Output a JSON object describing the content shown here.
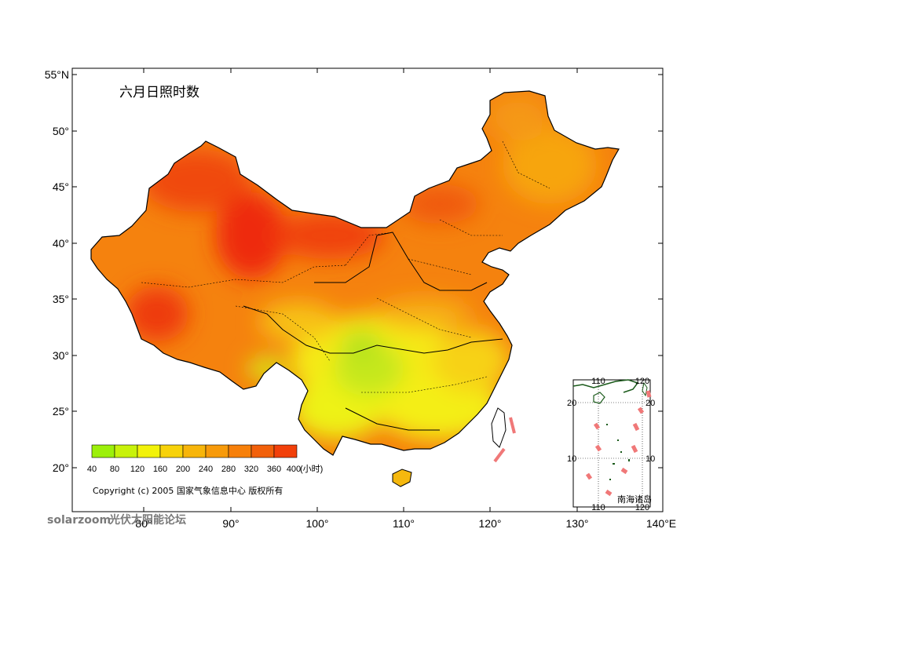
{
  "title": "六月日照时数",
  "axes": {
    "y_ticks": [
      "55°N",
      "50°",
      "45°",
      "40°",
      "35°",
      "30°",
      "25°",
      "20°"
    ],
    "x_ticks": [
      "80°",
      "90°",
      "100°",
      "110°",
      "120°",
      "130°",
      "140°E"
    ]
  },
  "legend": {
    "unit_label": "(小时)",
    "ticks": [
      "40",
      "80",
      "120",
      "160",
      "200",
      "240",
      "280",
      "320",
      "360",
      "400"
    ],
    "colors": [
      "#9cf00a",
      "#c8f20a",
      "#f2f20a",
      "#f7d20a",
      "#f7b50a",
      "#f79a0a",
      "#f7800a",
      "#f2600a",
      "#f2400a",
      "#f20a0a"
    ]
  },
  "copyright": "Copyright (c) 2005  国家气象信息中心  版权所有",
  "inset": {
    "label": "南海诸岛",
    "top_ticks": [
      "110",
      "120"
    ],
    "bottom_ticks": [
      "110",
      "120"
    ],
    "left_ticks": [
      "20",
      "10"
    ],
    "right_ticks": [
      "20",
      "10"
    ]
  },
  "watermark": {
    "brand": "solarzoom",
    "text": "光伏太阳能论坛"
  },
  "colors": {
    "high": "#f24a0a",
    "mid": "#f28a0a",
    "low": "#f2e60a",
    "lowest": "#c8ee1a",
    "boundary": "#000000",
    "sea_dashes": "#f07878"
  }
}
